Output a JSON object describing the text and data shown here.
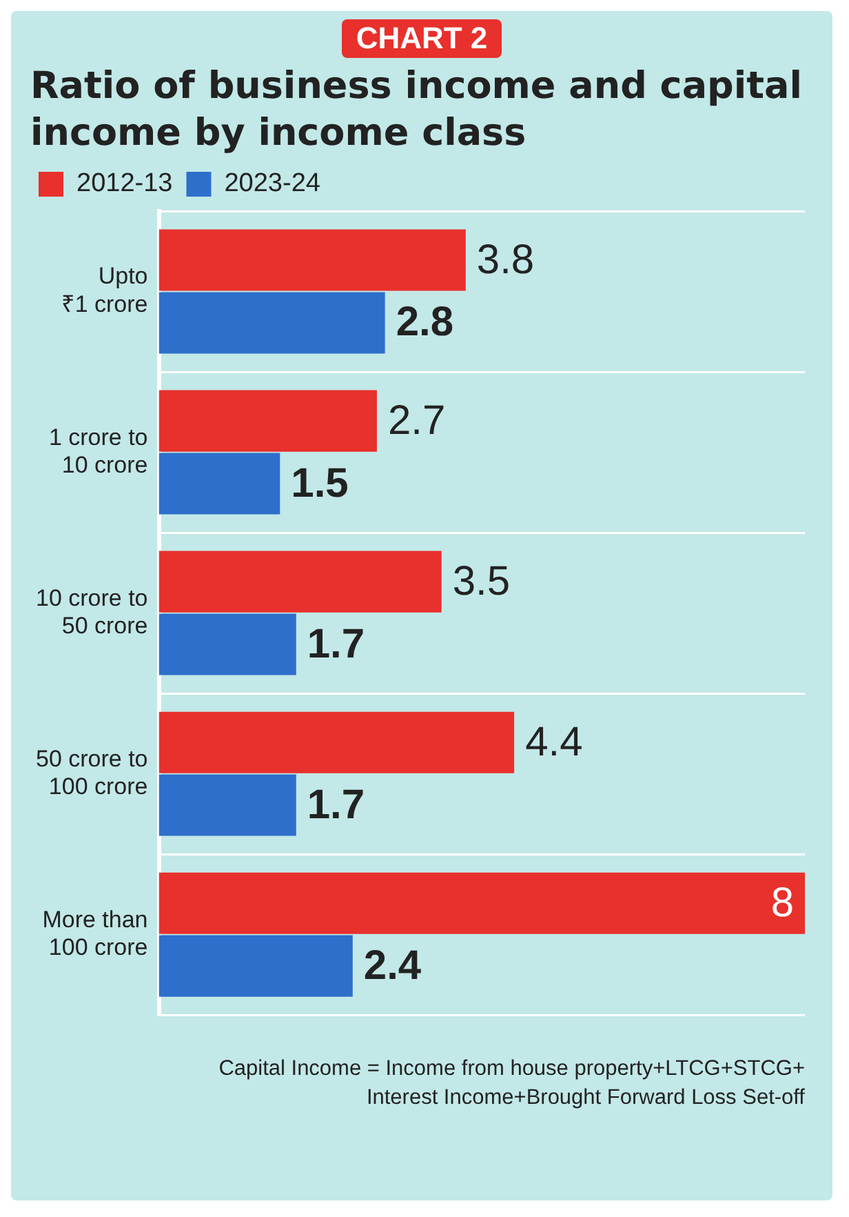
{
  "chart_data": {
    "type": "bar",
    "orientation": "horizontal",
    "title": "Ratio of business income and capital income by income class",
    "annotations": [
      "CHART 2",
      "Capital Income = Income from house property+LTCG+STCG+\nInterest Income+Brought Forward Loss Set-off"
    ],
    "categories": [
      "Upto\n₹1 crore",
      "1 crore to\n10 crore",
      "10 crore to\n50 crore",
      "50 crore to\n100 crore",
      "More than\n100 crore"
    ],
    "series": [
      {
        "name": "2012-13",
        "color": "#e8302c",
        "values": [
          3.8,
          2.7,
          3.5,
          4.4,
          8
        ]
      },
      {
        "name": "2023-24",
        "color": "#2e6fcb",
        "values": [
          2.8,
          1.5,
          1.7,
          1.7,
          2.4
        ]
      }
    ],
    "data_labels": true,
    "legend": "top left",
    "grid": "y"
  }
}
